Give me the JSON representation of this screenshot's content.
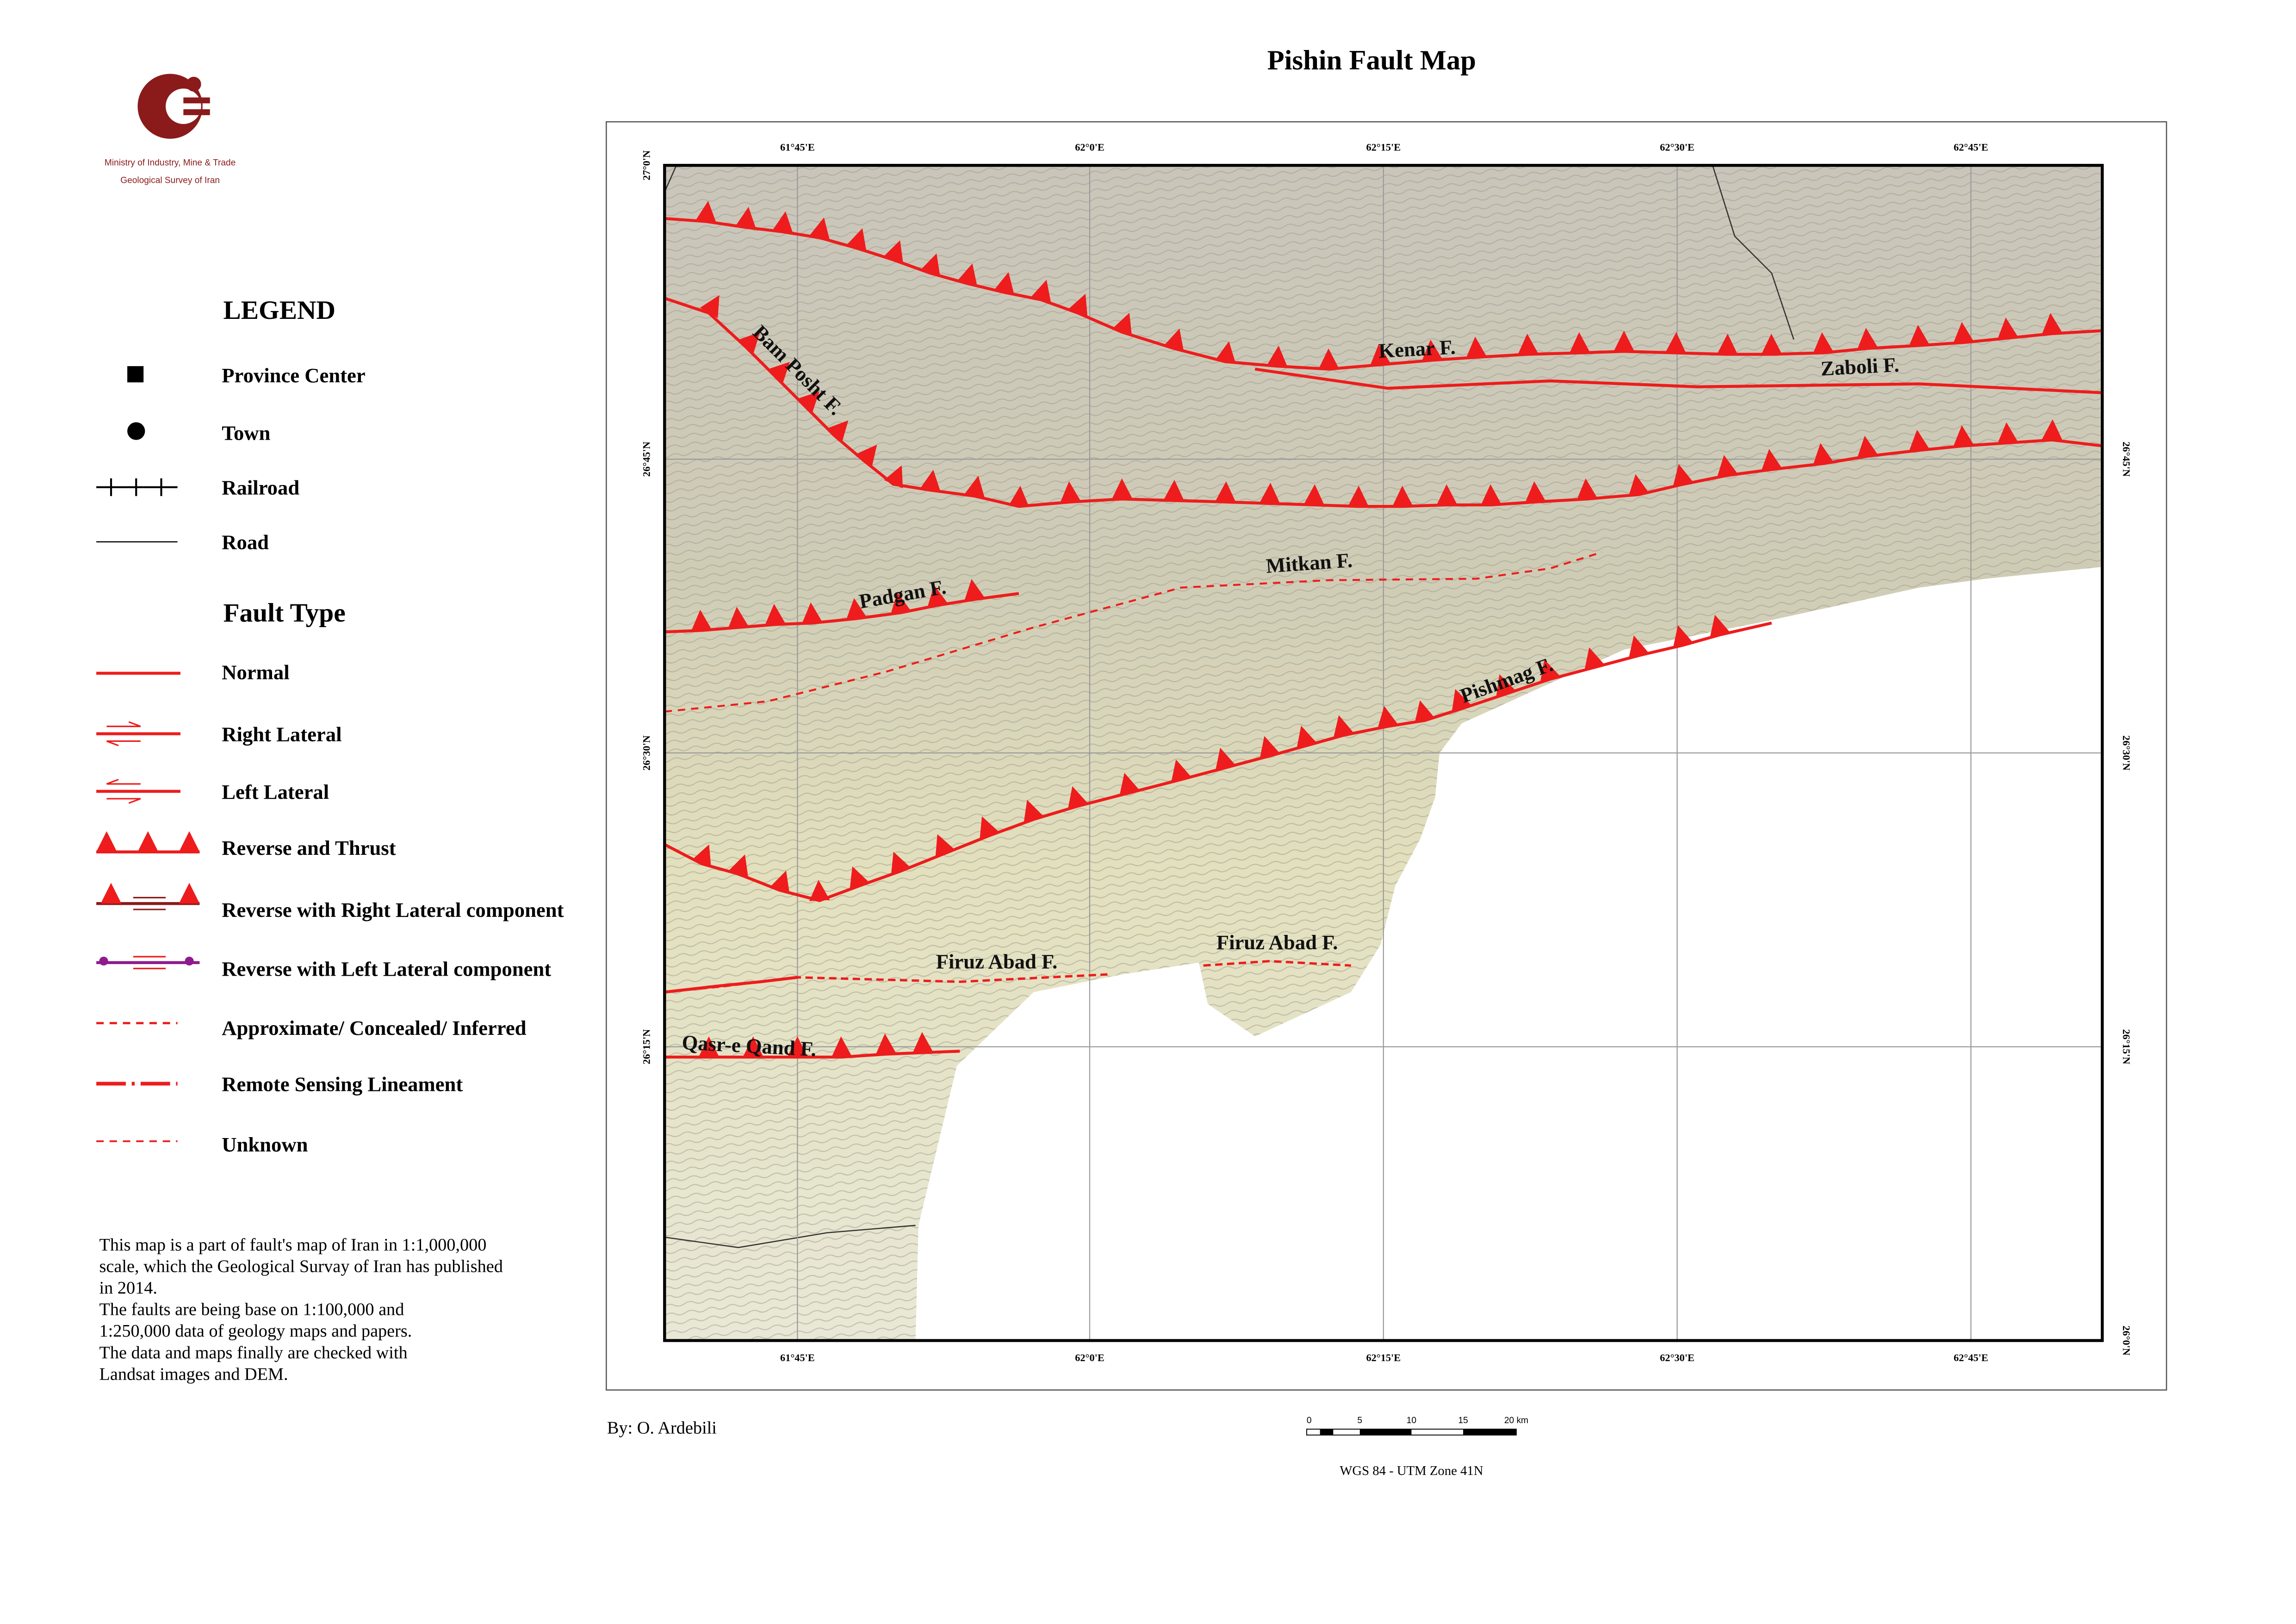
{
  "header": {
    "title": "Pishin Fault Map",
    "org_line1": "Ministry of Industry, Mine & Trade",
    "org_line2": "Geological Survey of Iran"
  },
  "legend": {
    "title": "LEGEND",
    "items": [
      "Province Center",
      "Town",
      "Railroad",
      "Road"
    ],
    "fault_type_title": "Fault Type",
    "fault_types": [
      "Normal",
      "Right Lateral",
      "Left Lateral",
      "Reverse and Thrust",
      "Reverse with Right Lateral component",
      "Reverse with Left Lateral component",
      "Approximate/ Concealed/ Inferred",
      "Remote Sensing Lineament",
      "Unknown"
    ]
  },
  "map": {
    "lon_labels": [
      "61°45'E",
      "62°0'E",
      "62°15'E",
      "62°30'E",
      "62°45'E"
    ],
    "lat_labels": [
      "27°0'N",
      "26°45'N",
      "26°30'N",
      "26°15'N",
      "26°0'N"
    ],
    "faults": [
      "Kenar F.",
      "Zaboli F.",
      "Bam Posht F.",
      "Padgan F.",
      "Mitkan F.",
      "Pishmag F.",
      "Firuz Abad F.",
      "Firuz Abad F.",
      "Qasr-e Qand F."
    ]
  },
  "note": [
    "This map is a part of fault's map of Iran in 1:1,000,000",
    "scale, which the Geological Survay of Iran has published",
    "in 2014.",
    "The faults are being base on 1:100,000 and",
    "1:250,000 data of geology maps and papers.",
    "The data and maps finally are checked with",
    "Landsat images and DEM."
  ],
  "author": "By: O. Ardebili",
  "scale_labels": [
    "0",
    "5",
    "10",
    "15",
    "20 km"
  ],
  "projection": "WGS 84 - UTM Zone 41N"
}
